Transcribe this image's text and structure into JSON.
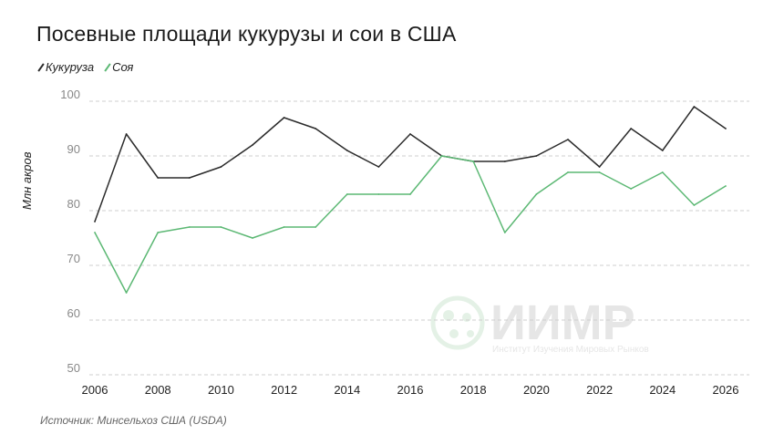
{
  "title": "Посевные площади кукурузы и сои в США",
  "legend": [
    {
      "name": "Кукуруза",
      "color": "#2b2b2b"
    },
    {
      "name": "Соя",
      "color": "#5cb874"
    }
  ],
  "source": "Источник: Минсельхоз США (USDA)",
  "watermark": {
    "name": "ИИМР",
    "subtitle": "Институт Изучения Мировых Рынков"
  },
  "chart_data": {
    "type": "line",
    "title": "Посевные площади кукурузы и сои в США",
    "ylabel": "Млн акров",
    "xlim": [
      2006,
      2026
    ],
    "ylim": [
      50,
      100
    ],
    "x_ticks": [
      2006,
      2008,
      2010,
      2012,
      2014,
      2016,
      2018,
      2020,
      2022,
      2024,
      2026
    ],
    "y_ticks": [
      50,
      60,
      70,
      80,
      90,
      100
    ],
    "grid": "horizontal dashed",
    "legend_position": "top-left",
    "x": [
      2006,
      2007,
      2008,
      2009,
      2010,
      2011,
      2012,
      2013,
      2014,
      2015,
      2016,
      2017,
      2018,
      2019,
      2020,
      2021,
      2022,
      2023,
      2024,
      2025,
      2026
    ],
    "series": [
      {
        "name": "Кукуруза",
        "color": "#2b2b2b",
        "values": [
          78,
          94,
          86,
          86,
          88,
          92,
          97,
          95,
          91,
          88,
          94,
          90,
          89,
          89,
          90,
          93,
          88,
          95,
          91,
          99,
          95
        ]
      },
      {
        "name": "Соя",
        "color": "#5cb874",
        "values": [
          76,
          65,
          76,
          77,
          77,
          75,
          77,
          77,
          83,
          83,
          83,
          90,
          89,
          76,
          83,
          87,
          87,
          84,
          87,
          81,
          84.5
        ]
      }
    ]
  }
}
